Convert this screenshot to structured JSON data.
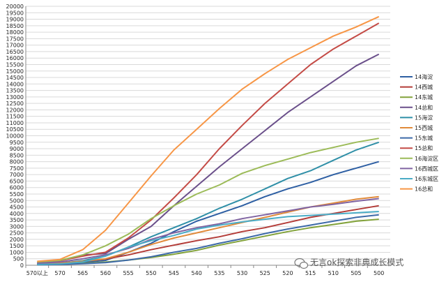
{
  "chart_data": {
    "type": "line",
    "title": "",
    "xlabel": "",
    "ylabel": "",
    "categories": [
      "570以上",
      "570",
      "565",
      "560",
      "555",
      "550",
      "545",
      "540",
      "535",
      "530",
      "525",
      "520",
      "515",
      "510",
      "505",
      "500"
    ],
    "ylim": [
      0,
      20000
    ],
    "ytick_step": 500,
    "grid": true,
    "legend_position": "right",
    "series": [
      {
        "name": "14海淀",
        "color": "#2e5fa3",
        "values": [
          80,
          120,
          220,
          380,
          1000,
          1700,
          2600,
          3400,
          4000,
          4600,
          5300,
          5900,
          6400,
          7000,
          7500,
          8000
        ]
      },
      {
        "name": "14西城",
        "color": "#b33c38",
        "values": [
          120,
          180,
          320,
          480,
          800,
          1200,
          1550,
          1900,
          2200,
          2600,
          2900,
          3300,
          3700,
          4000,
          4300,
          4600
        ]
      },
      {
        "name": "14东城",
        "color": "#82a23a",
        "values": [
          40,
          80,
          150,
          250,
          400,
          600,
          850,
          1150,
          1550,
          1900,
          2250,
          2600,
          2900,
          3150,
          3400,
          3550
        ]
      },
      {
        "name": "14总和",
        "color": "#6a4f8a",
        "values": [
          200,
          350,
          800,
          900,
          2000,
          3000,
          4600,
          6100,
          7600,
          9000,
          10400,
          11800,
          13000,
          14200,
          15400,
          16300
        ]
      },
      {
        "name": "15海淀",
        "color": "#2f8fa7",
        "values": [
          100,
          150,
          350,
          700,
          1400,
          2200,
          2900,
          3600,
          4400,
          5100,
          5900,
          6700,
          7300,
          8100,
          8900,
          9500
        ]
      },
      {
        "name": "15西城",
        "color": "#e08a3a",
        "values": [
          100,
          160,
          300,
          500,
          1000,
          1600,
          2100,
          2500,
          2900,
          3300,
          3700,
          4100,
          4500,
          4800,
          5100,
          5300
        ]
      },
      {
        "name": "15东城",
        "color": "#3d6aa8",
        "values": [
          30,
          60,
          120,
          200,
          400,
          650,
          1000,
          1300,
          1700,
          2050,
          2450,
          2800,
          3100,
          3400,
          3700,
          3900
        ]
      },
      {
        "name": "15总和",
        "color": "#c44b46",
        "values": [
          200,
          350,
          700,
          1000,
          2100,
          3500,
          5200,
          7000,
          9000,
          10800,
          12500,
          14000,
          15500,
          16700,
          17700,
          18700
        ]
      },
      {
        "name": "16海淀区",
        "color": "#9cbb58",
        "values": [
          250,
          380,
          800,
          1500,
          2400,
          3600,
          4600,
          5500,
          6200,
          7100,
          7700,
          8200,
          8700,
          9100,
          9500,
          9800
        ]
      },
      {
        "name": "16西城区",
        "color": "#8064a2",
        "values": [
          150,
          250,
          500,
          800,
          1300,
          2000,
          2500,
          2900,
          3200,
          3600,
          3900,
          4200,
          4500,
          4700,
          4950,
          5150
        ]
      },
      {
        "name": "16东城区",
        "color": "#4aacc6",
        "values": [
          60,
          100,
          250,
          700,
          1400,
          1900,
          2300,
          2800,
          3100,
          3350,
          3550,
          3750,
          3850,
          3950,
          4050,
          4150
        ]
      },
      {
        "name": "16总和",
        "color": "#f79646",
        "values": [
          300,
          450,
          1200,
          2700,
          4800,
          6900,
          8900,
          10500,
          12100,
          13600,
          14800,
          15900,
          16800,
          17700,
          18400,
          19200
        ]
      }
    ]
  },
  "watermark": {
    "text": "无言ok探索非典成长模式",
    "icon": "wechat-icon"
  }
}
